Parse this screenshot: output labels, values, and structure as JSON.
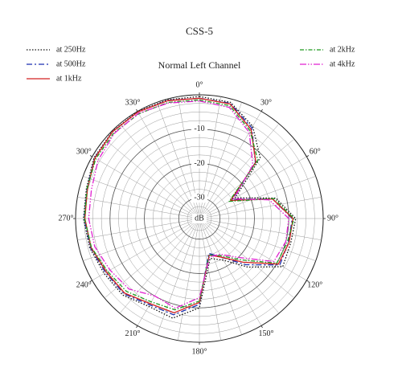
{
  "chart_data": {
    "type": "polar",
    "title": "CSS-5",
    "subtitle": "Normal Left Channel",
    "r_label": "dB",
    "angles": [
      0,
      15,
      30,
      45,
      60,
      75,
      90,
      105,
      120,
      135,
      150,
      165,
      180,
      195,
      210,
      225,
      240,
      255,
      270,
      285,
      300,
      315,
      330,
      345
    ],
    "rlim": [
      -36,
      0
    ],
    "rticks": [
      -30,
      -20,
      -10
    ],
    "minor_step": 2.5,
    "spoke_step": 10,
    "angle_ticks": [
      {
        "value": 0,
        "label": "0°"
      },
      {
        "value": 30,
        "label": "30°"
      },
      {
        "value": 60,
        "label": "60°"
      },
      {
        "value": 90,
        "label": "90°"
      },
      {
        "value": 120,
        "label": "120°"
      },
      {
        "value": 150,
        "label": "150°"
      },
      {
        "value": 180,
        "label": "180°"
      },
      {
        "value": 210,
        "label": "210°"
      },
      {
        "value": 240,
        "label": "240°"
      },
      {
        "value": 270,
        "label": "270°"
      },
      {
        "value": 300,
        "label": "300°"
      },
      {
        "value": 330,
        "label": "330°"
      }
    ],
    "series": [
      {
        "name": "at 250Hz",
        "color": "#111111",
        "dash": "1.5 2",
        "values": [
          -0.5,
          -1,
          -5,
          -11,
          -24,
          -13,
          -8,
          -8.5,
          -8,
          -16,
          -22,
          -24,
          -10,
          -6,
          -6.5,
          -4.5,
          -4,
          -3,
          -2.3,
          -2,
          -0.6,
          -0.2,
          0,
          -0.2
        ]
      },
      {
        "name": "at 500Hz",
        "color": "#1a2fb0",
        "dash": "7 3 2 3",
        "values": [
          -1,
          -1.3,
          -5.5,
          -13,
          -25,
          -14,
          -9,
          -9.2,
          -9,
          -17,
          -23,
          -25.5,
          -11,
          -7,
          -7,
          -5,
          -4.5,
          -3.2,
          -2.5,
          -2.2,
          -0.8,
          -0.3,
          -0.2,
          -0.4
        ]
      },
      {
        "name": "at 1kHz",
        "color": "#d42020",
        "dash": "none",
        "values": [
          -1,
          -1.5,
          -6,
          -12.8,
          -25.5,
          -14,
          -8.8,
          -9,
          -9.5,
          -18,
          -23,
          -25,
          -11.6,
          -7.6,
          -7.4,
          -5.3,
          -4.8,
          -3.4,
          -2.7,
          -2.3,
          -0.9,
          -0.3,
          -0.2,
          -0.5
        ]
      },
      {
        "name": "at 2kHz",
        "color": "#1e9a1e",
        "dash": "5 2 1.5 2",
        "values": [
          -1.5,
          -2,
          -6.5,
          -12,
          -26,
          -13.5,
          -8.5,
          -9.5,
          -10,
          -19,
          -23.5,
          -25,
          -12,
          -8.5,
          -8,
          -6,
          -5.2,
          -3.5,
          -2.6,
          -2.2,
          -1.2,
          -0.8,
          -0.8,
          -1
        ]
      },
      {
        "name": "at 4kHz",
        "color": "#e020d0",
        "dash": "8 2 1.5 2 1.5 2",
        "values": [
          -1.8,
          -2.5,
          -7,
          -14,
          -24.5,
          -15,
          -10,
          -10,
          -11,
          -20,
          -24,
          -24.5,
          -13,
          -9,
          -10,
          -7,
          -6,
          -4.5,
          -3.8,
          -3.5,
          -2,
          -1,
          -0.6,
          -1.2
        ]
      }
    ]
  }
}
